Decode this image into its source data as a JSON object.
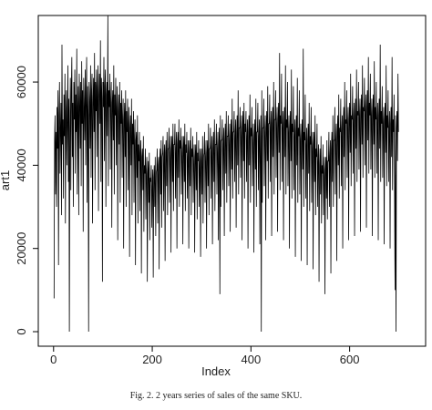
{
  "chart_data": {
    "type": "line",
    "x_label": "Index",
    "y_label": "art1",
    "caption": "Fig. 2. 2 years series of sales of the same SKU.",
    "color": "#000000",
    "xlim": [
      -31,
      754
    ],
    "xticks": [
      0,
      200,
      400,
      600
    ],
    "ylim": [
      -3500,
      76000
    ],
    "yticks": [
      0,
      20000,
      40000,
      60000
    ],
    "values": [
      8000,
      46000,
      52000,
      33000,
      48000,
      30000,
      54000,
      44000,
      58000,
      16000,
      52000,
      60000,
      38000,
      49000,
      55000,
      28000,
      69000,
      45000,
      51000,
      32000,
      57000,
      47000,
      62000,
      26000,
      53000,
      58000,
      40000,
      50000,
      64000,
      36000,
      56000,
      0,
      49000,
      61000,
      34000,
      58000,
      66000,
      42000,
      55000,
      30000,
      60000,
      51000,
      63000,
      38000,
      57000,
      48000,
      68000,
      33000,
      54000,
      59000,
      28000,
      62000,
      56000,
      44000,
      60000,
      35000,
      65000,
      50000,
      58000,
      24000,
      61000,
      54000,
      46000,
      63000,
      40000,
      57000,
      66000,
      31000,
      59000,
      52000,
      0,
      60000,
      56000,
      44000,
      64000,
      37000,
      58000,
      62000,
      26000,
      55000,
      61000,
      48000,
      67000,
      34000,
      60000,
      53000,
      63000,
      42000,
      58000,
      64000,
      29000,
      57000,
      62000,
      50000,
      70000,
      36000,
      61000,
      56000,
      12000,
      60000,
      54000,
      66000,
      41000,
      59000,
      63000,
      30000,
      57000,
      60000,
      47000,
      76000,
      35000,
      58000,
      54000,
      62000,
      39000,
      56000,
      60000,
      25000,
      55000,
      58000,
      46000,
      64000,
      33000,
      57000,
      52000,
      61000,
      40000,
      54000,
      59000,
      22000,
      53000,
      57000,
      45000,
      60000,
      31000,
      55000,
      50000,
      58000,
      37000,
      52000,
      56000,
      20000,
      51000,
      55000,
      42000,
      58000,
      30000,
      53000,
      48000,
      56000,
      34000,
      50000,
      54000,
      18000,
      49000,
      52000,
      40000,
      56000,
      28000,
      50000,
      45000,
      53000,
      31000,
      47000,
      51000,
      16000,
      46000,
      48000,
      37000,
      52000,
      26000,
      45000,
      41000,
      48000,
      29000,
      43000,
      46000,
      14000,
      42000,
      44000,
      34000,
      47000,
      24000,
      40000,
      38000,
      44000,
      27000,
      39000,
      42000,
      12000,
      38000,
      41000,
      31000,
      43000,
      22000,
      37000,
      36000,
      40000,
      25000,
      35000,
      39000,
      13000,
      37000,
      40000,
      30000,
      42000,
      23000,
      38000,
      39000,
      44000,
      26000,
      40000,
      42000,
      15000,
      41000,
      44000,
      33000,
      46000,
      25000,
      42000,
      43000,
      47000,
      29000,
      42000,
      45000,
      17000,
      43000,
      46000,
      35000,
      48000,
      28000,
      44000,
      44000,
      49000,
      31000,
      43000,
      47000,
      19000,
      44000,
      47000,
      36000,
      50000,
      29000,
      45000,
      45000,
      50000,
      32000,
      44000,
      48000,
      20000,
      45000,
      48000,
      37000,
      51000,
      30000,
      46000,
      44000,
      49000,
      33000,
      43000,
      47000,
      21000,
      44000,
      47000,
      36000,
      50000,
      29000,
      45000,
      43000,
      48000,
      32000,
      42000,
      46000,
      20000,
      43000,
      46000,
      35000,
      49000,
      28000,
      44000,
      42000,
      47000,
      31000,
      41000,
      45000,
      19000,
      42000,
      45000,
      34000,
      48000,
      27000,
      43000,
      41000,
      46000,
      30000,
      40000,
      44000,
      18000,
      41000,
      44000,
      33000,
      47000,
      26000,
      42000,
      43000,
      48000,
      31000,
      42000,
      46000,
      20000,
      43000,
      46000,
      35000,
      50000,
      28000,
      44000,
      44000,
      49000,
      32000,
      43000,
      47000,
      21000,
      44000,
      48000,
      36000,
      51000,
      29000,
      45000,
      45000,
      50000,
      33000,
      44000,
      48000,
      22000,
      45000,
      49000,
      9000,
      52000,
      30000,
      46000,
      46000,
      51000,
      34000,
      45000,
      49000,
      23000,
      46000,
      50000,
      38000,
      53000,
      31000,
      47000,
      47000,
      52000,
      35000,
      46000,
      50000,
      24000,
      47000,
      51000,
      39000,
      56000,
      32000,
      48000,
      48000,
      53000,
      36000,
      47000,
      51000,
      25000,
      48000,
      52000,
      40000,
      58000,
      33000,
      49000,
      49000,
      54000,
      37000,
      48000,
      52000,
      22000,
      49000,
      53000,
      41000,
      55000,
      32000,
      50000,
      48000,
      53000,
      36000,
      47000,
      51000,
      20000,
      48000,
      52000,
      40000,
      57000,
      31000,
      49000,
      47000,
      54000,
      35000,
      46000,
      50000,
      19000,
      47000,
      51000,
      39000,
      56000,
      30000,
      48000,
      48000,
      55000,
      34000,
      47000,
      51000,
      21000,
      48000,
      52000,
      0,
      58000,
      31000,
      49000,
      49000,
      56000,
      35000,
      48000,
      52000,
      22000,
      49000,
      53000,
      41000,
      59000,
      32000,
      50000,
      50000,
      57000,
      36000,
      49000,
      53000,
      23000,
      50000,
      54000,
      42000,
      60000,
      33000,
      51000,
      51000,
      58000,
      37000,
      50000,
      54000,
      24000,
      51000,
      55000,
      43000,
      67000,
      34000,
      52000,
      50000,
      62000,
      36000,
      49000,
      53000,
      22000,
      50000,
      54000,
      42000,
      64000,
      33000,
      51000,
      49000,
      60000,
      35000,
      48000,
      52000,
      20000,
      49000,
      53000,
      41000,
      63000,
      32000,
      50000,
      48000,
      59000,
      34000,
      47000,
      51000,
      18000,
      48000,
      52000,
      40000,
      61000,
      31000,
      49000,
      47000,
      58000,
      33000,
      46000,
      50000,
      17000,
      47000,
      51000,
      39000,
      68000,
      30000,
      48000,
      46000,
      57000,
      32000,
      45000,
      49000,
      16000,
      46000,
      50000,
      38000,
      55000,
      29000,
      47000,
      45000,
      54000,
      31000,
      44000,
      48000,
      15000,
      45000,
      48000,
      36000,
      52000,
      28000,
      44000,
      42000,
      50000,
      30000,
      41000,
      45000,
      12000,
      40000,
      44000,
      33000,
      47000,
      26000,
      40000,
      38000,
      45000,
      28000,
      38000,
      42000,
      9000,
      39000,
      42000,
      32000,
      46000,
      27000,
      41000,
      41000,
      48000,
      30000,
      42000,
      46000,
      14000,
      44000,
      48000,
      36000,
      52000,
      30000,
      46000,
      46000,
      54000,
      33000,
      46000,
      50000,
      17000,
      48000,
      52000,
      40000,
      57000,
      32000,
      49000,
      48000,
      56000,
      35000,
      48000,
      52000,
      20000,
      50000,
      54000,
      42000,
      60000,
      34000,
      51000,
      50000,
      58000,
      37000,
      50000,
      54000,
      22000,
      51000,
      55000,
      43000,
      62000,
      35000,
      52000,
      51000,
      59000,
      38000,
      51000,
      55000,
      23000,
      52000,
      56000,
      44000,
      63000,
      36000,
      53000,
      52000,
      60000,
      39000,
      52000,
      56000,
      24000,
      53000,
      57000,
      45000,
      64000,
      37000,
      54000,
      53000,
      61000,
      40000,
      53000,
      57000,
      25000,
      54000,
      58000,
      46000,
      66000,
      38000,
      55000,
      52000,
      62000,
      39000,
      52000,
      56000,
      23000,
      53000,
      57000,
      45000,
      65000,
      37000,
      54000,
      51000,
      60000,
      38000,
      51000,
      55000,
      22000,
      52000,
      56000,
      44000,
      69000,
      36000,
      53000,
      50000,
      59000,
      37000,
      50000,
      54000,
      21000,
      51000,
      55000,
      43000,
      64000,
      35000,
      52000,
      49000,
      58000,
      36000,
      49000,
      53000,
      20000,
      50000,
      54000,
      42000,
      66000,
      34000,
      51000,
      48000,
      57000,
      35000,
      10000,
      52000,
      0,
      49000,
      53000,
      41000,
      62000,
      48000
    ]
  }
}
